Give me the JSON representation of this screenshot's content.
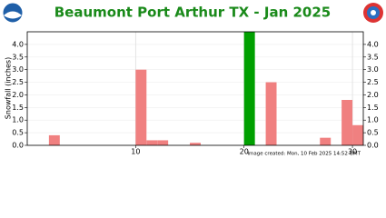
{
  "chart_data": {
    "type": "bar",
    "title": "Beaumont Port Arthur TX - Jan 2025",
    "y_label": "Snowfall (inches)",
    "note": "Image created: Mon, 10 Feb 2025 14:52 GMT",
    "x": [
      2,
      10,
      11,
      12,
      15,
      20,
      22,
      27,
      29,
      30
    ],
    "values": [
      0.4,
      3.0,
      0.2,
      0.2,
      0.1,
      4.5,
      2.5,
      0.3,
      1.8,
      0.8
    ],
    "colors": [
      "#f08080",
      "#f08080",
      "#f08080",
      "#f08080",
      "#f08080",
      "#00a000",
      "#f08080",
      "#f08080",
      "#f08080",
      "#f08080"
    ],
    "xlim": [
      0,
      31
    ],
    "xticks": [
      10,
      20,
      30
    ],
    "ylim": [
      0,
      4.5
    ],
    "yticks": [
      {
        "value": 0,
        "label": "0.0"
      },
      {
        "value": 0.5,
        "label": "0.5"
      },
      {
        "value": 1,
        "label": "1.0"
      },
      {
        "value": 1.5,
        "label": "1.5"
      },
      {
        "value": 2,
        "label": "2.0"
      },
      {
        "value": 2.5,
        "label": "2.5"
      },
      {
        "value": 3,
        "label": "3.0"
      },
      {
        "value": 3.5,
        "label": "3.5"
      },
      {
        "value": 4,
        "label": "4.0"
      }
    ],
    "grid": true
  }
}
